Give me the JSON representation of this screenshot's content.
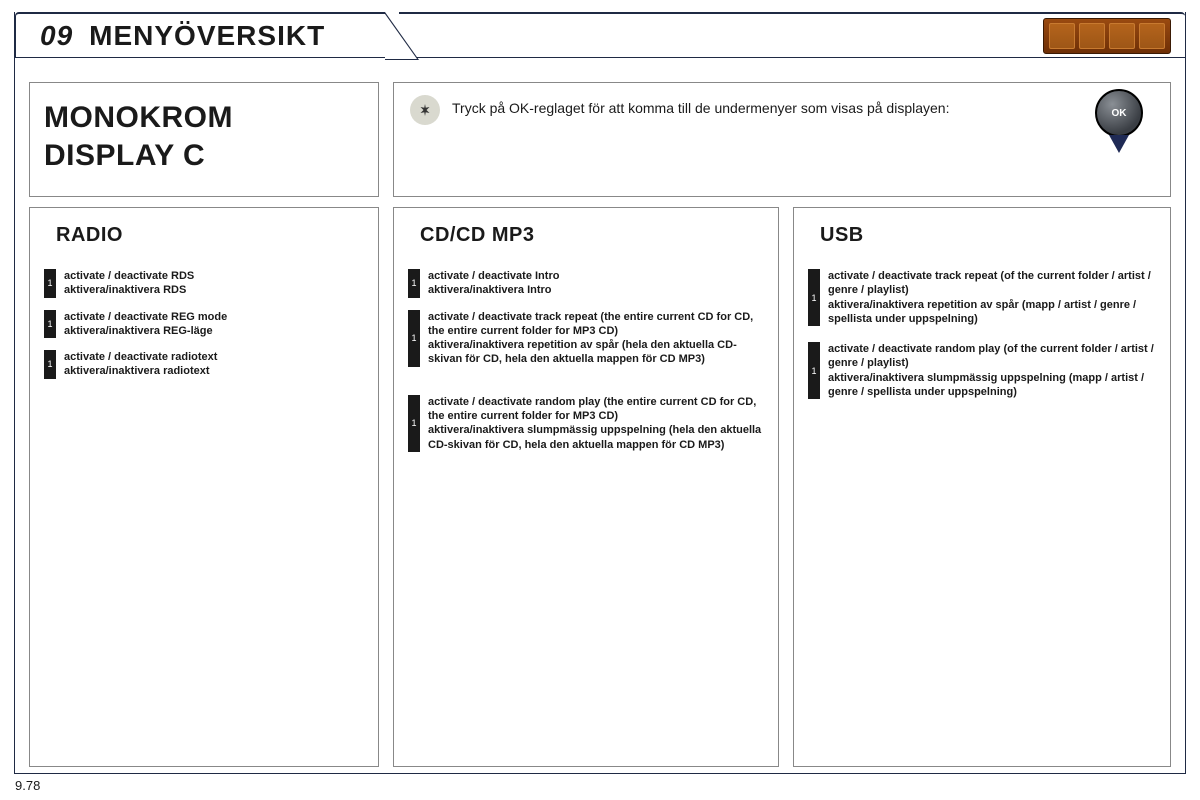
{
  "header": {
    "chapter_number": "09",
    "chapter_title": "MENYÖVERSIKT"
  },
  "title_card": {
    "line1": "MONOKROM",
    "line2": "DISPLAY C"
  },
  "instruction": {
    "text": "Tryck på OK-reglaget för att komma till de undermenyer som visas på displayen:",
    "ok_label": "OK"
  },
  "columns": {
    "radio": {
      "heading": "RADIO",
      "items": [
        {
          "marker": "1",
          "en": "activate / deactivate RDS",
          "sv": "aktivera/inaktivera RDS"
        },
        {
          "marker": "1",
          "en": "activate / deactivate REG mode",
          "sv": "aktivera/inaktivera REG-läge"
        },
        {
          "marker": "1",
          "en": "activate / deactivate radiotext",
          "sv": "aktivera/inaktivera radiotext"
        }
      ]
    },
    "cd": {
      "heading": "CD/CD MP3",
      "items": [
        {
          "marker": "1",
          "en": "activate / deactivate Intro",
          "sv": "aktivera/inaktivera Intro"
        },
        {
          "marker": "1",
          "en": "activate / deactivate track repeat (the entire current CD for CD, the entire current folder for MP3 CD)",
          "sv": "aktivera/inaktivera repetition av spår (hela den aktuella CD-skivan för CD, hela den aktuella mappen för CD MP3)"
        },
        {
          "marker": "1",
          "en": "activate / deactivate random play (the entire current CD for CD, the entire current folder for MP3 CD)",
          "sv": "aktivera/inaktivera slumpmässig uppspelning (hela den aktuella CD-skivan för CD, hela den aktuella mappen för CD MP3)"
        }
      ]
    },
    "usb": {
      "heading": "USB",
      "items": [
        {
          "marker": "1",
          "en": "activate / deactivate track repeat (of the current folder / artist / genre / playlist)",
          "sv": "aktivera/inaktivera repetition av spår (mapp / artist / genre / spellista under uppspelning)"
        },
        {
          "marker": "1",
          "en": "activate / deactivate random play (of the current folder / artist / genre / playlist)",
          "sv": "aktivera/inaktivera slumpmässig uppspelning (mapp / artist / genre / spellista under uppspelning)"
        }
      ]
    }
  },
  "page_number": "9.78",
  "colors": {
    "border_dark": "#1f2a44",
    "border_light": "#888888",
    "text": "#1a1a1a",
    "icon_bg": "#9a4a10"
  }
}
